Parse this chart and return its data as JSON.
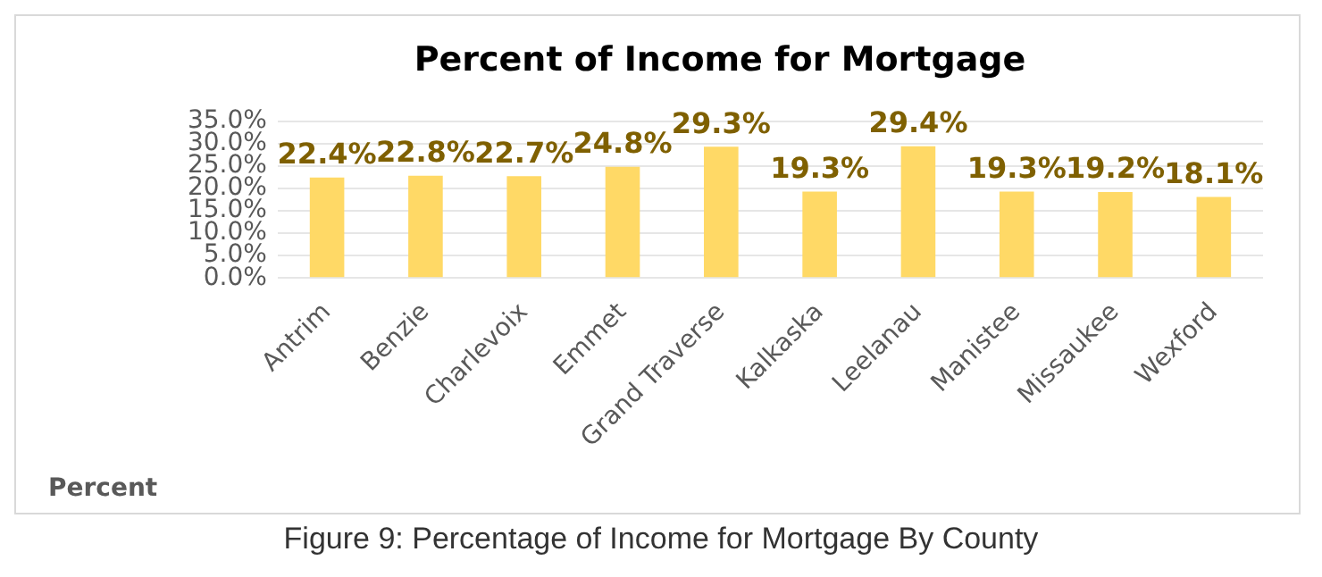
{
  "chart_data": {
    "type": "bar",
    "title": "Percent of Income for Mortgage",
    "categories": [
      "Antrim",
      "Benzie",
      "Charlevoix",
      "Emmet",
      "Grand Traverse",
      "Kalkaska",
      "Leelanau",
      "Manistee",
      "Missaukee",
      "Wexford"
    ],
    "values": [
      22.4,
      22.8,
      22.7,
      24.8,
      29.3,
      19.3,
      29.4,
      19.3,
      19.2,
      18.1
    ],
    "value_labels": [
      "22.4%",
      "22.8%",
      "22.7%",
      "24.8%",
      "29.3%",
      "19.3%",
      "29.4%",
      "19.3%",
      "19.2%",
      "18.1%"
    ],
    "color": "#ffd966",
    "ylim": [
      0,
      35
    ],
    "yticks": [
      {
        "value": 0,
        "label": "0.0%"
      },
      {
        "value": 5,
        "label": "5.0%"
      },
      {
        "value": 10,
        "label": "10.0%"
      },
      {
        "value": 15,
        "label": "15.0%"
      },
      {
        "value": 20,
        "label": "20.0%"
      },
      {
        "value": 25,
        "label": "25.0%"
      },
      {
        "value": 30,
        "label": "30.0%"
      },
      {
        "value": 35,
        "label": "35.0%"
      }
    ],
    "grid": "y",
    "annotations": [
      "Percent",
      "Figure 9: Percentage of Income for Mortgage By County"
    ]
  }
}
